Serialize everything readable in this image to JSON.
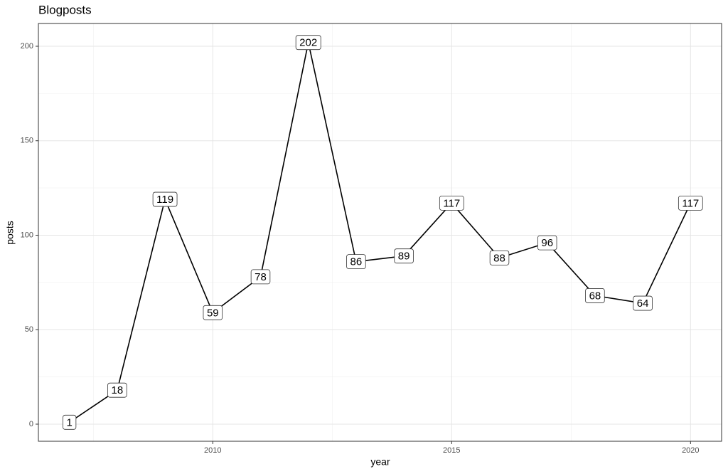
{
  "chart_data": {
    "type": "line",
    "title": "Blogposts",
    "x_label": "year",
    "y_label": "posts",
    "x": [
      2007,
      2008,
      2009,
      2010,
      2011,
      2012,
      2013,
      2014,
      2015,
      2016,
      2017,
      2018,
      2019,
      2020
    ],
    "values": [
      1,
      18,
      119,
      59,
      78,
      202,
      86,
      89,
      117,
      88,
      96,
      68,
      64,
      117
    ],
    "color": "#000000",
    "xlim": [
      2006.35,
      2020.65
    ],
    "xticks": [
      2010,
      2015,
      2020
    ],
    "ylim": [
      -9.05,
      212.05
    ],
    "yticks": [
      0,
      50,
      100,
      150,
      200
    ],
    "x_minor_grid": [
      2007.5,
      2012.5,
      2017.5
    ],
    "y_minor_grid": [
      25,
      75,
      125,
      175
    ],
    "grid": true
  }
}
